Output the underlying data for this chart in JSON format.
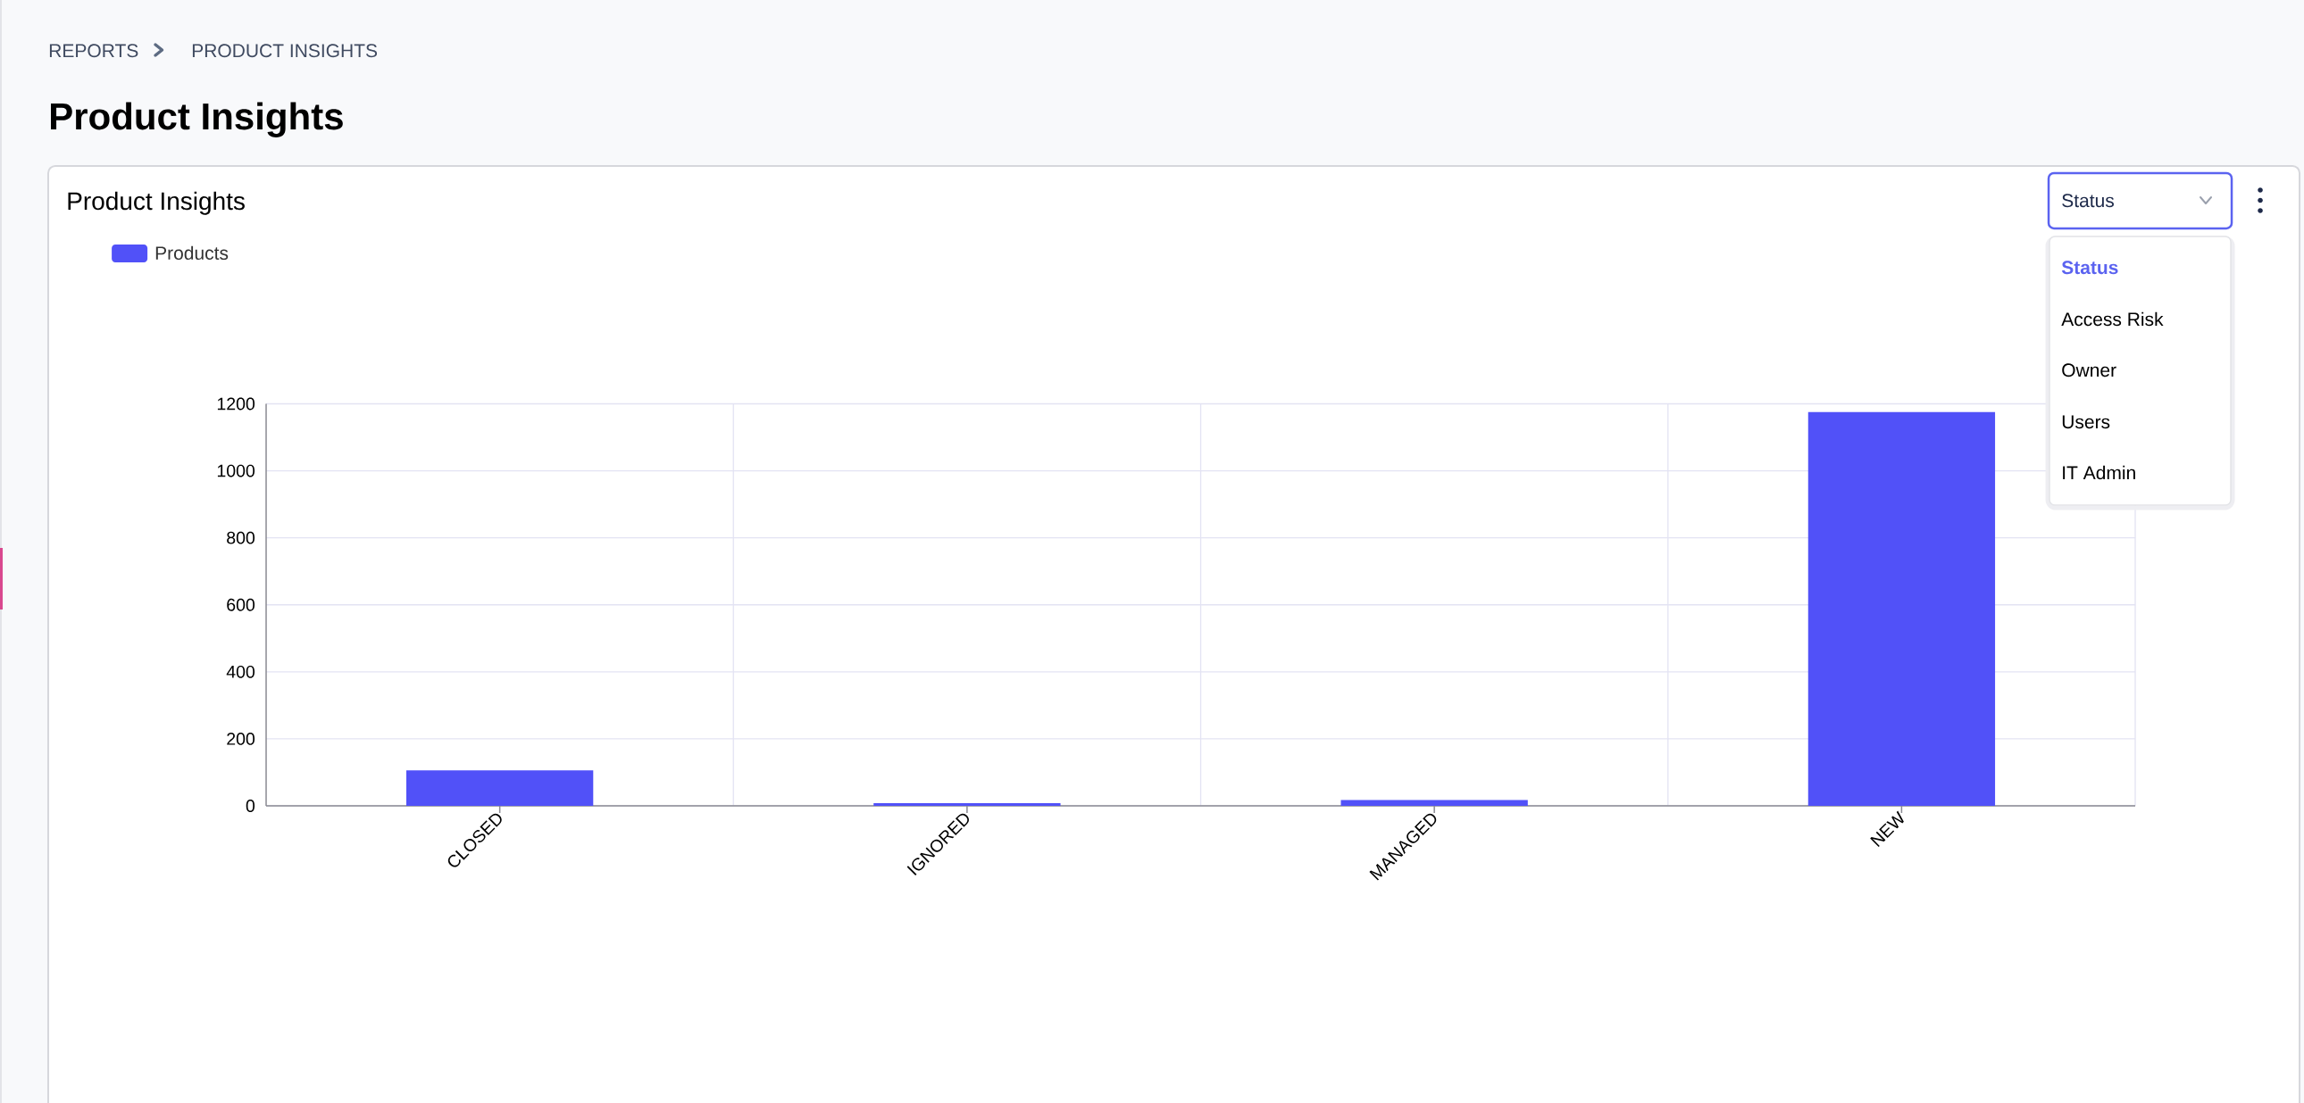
{
  "chart_data": {
    "type": "bar",
    "title": "Product Insights",
    "categories": [
      "CLOSED",
      "IGNORED",
      "MANAGED",
      "NEW"
    ],
    "series": [
      {
        "name": "Products",
        "color": "#5151f8",
        "values": [
          106,
          8,
          17,
          1175
        ]
      }
    ],
    "ylim": [
      0,
      1200
    ],
    "yticks": [
      0,
      200,
      400,
      600,
      800,
      1000,
      1200
    ],
    "grid": true,
    "legend": "top left",
    "annotations": [
      "REPORTS",
      "PRODUCT INSIGHTS",
      "Product Insights",
      "Status",
      "Status",
      "Access Risk",
      "Owner",
      "Users",
      "IT Admin"
    ]
  }
}
